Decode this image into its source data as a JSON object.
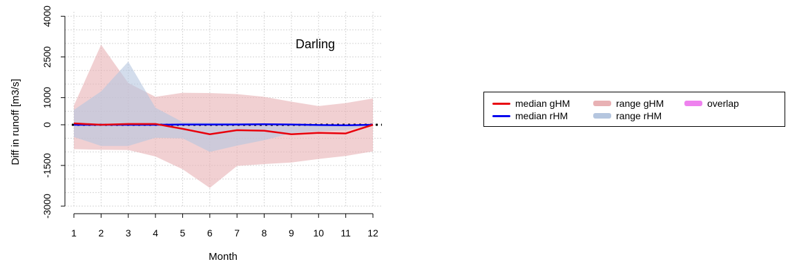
{
  "chart_data": {
    "type": "line",
    "annotation": "Darling",
    "xlabel": "Month",
    "ylabel": "Diff in runoff [m3/s]",
    "xlim": [
      1,
      12
    ],
    "ylim": [
      -3000,
      4000
    ],
    "x": [
      1,
      2,
      3,
      4,
      5,
      6,
      7,
      8,
      9,
      10,
      11,
      12
    ],
    "x_ticks": [
      "1",
      "2",
      "3",
      "4",
      "5",
      "6",
      "7",
      "8",
      "9",
      "10",
      "11",
      "12"
    ],
    "y_ticks": [
      -3000,
      -1500,
      0,
      1000,
      2500,
      4000
    ],
    "y_tick_labels": [
      "-3000",
      "-1500",
      "0",
      "1000",
      "2500",
      "4000"
    ],
    "grid": true,
    "zero_line": true,
    "legend_position": "right",
    "series": [
      {
        "name": "median gHM",
        "kind": "line",
        "color": "#e8000b",
        "values": [
          50,
          0,
          30,
          30,
          -150,
          -350,
          -200,
          -220,
          -350,
          -300,
          -320,
          0
        ]
      },
      {
        "name": "median rHM",
        "kind": "line",
        "color": "#0000ee",
        "values": [
          0,
          0,
          0,
          0,
          10,
          10,
          10,
          20,
          10,
          -10,
          -20,
          0
        ]
      },
      {
        "name": "range gHM",
        "kind": "band",
        "color": "#e8b1b4",
        "lower": [
          -900,
          -920,
          -930,
          -1170,
          -1640,
          -2330,
          -1520,
          -1450,
          -1390,
          -1260,
          -1150,
          -980
        ],
        "upper": [
          710,
          2950,
          1540,
          1030,
          1180,
          1170,
          1130,
          1030,
          850,
          690,
          800,
          970
        ]
      },
      {
        "name": "range rHM",
        "kind": "band",
        "color": "#b5c6df",
        "lower": [
          -450,
          -780,
          -780,
          -480,
          -500,
          -1000,
          -770,
          -570,
          -310,
          -240,
          -200,
          -20
        ],
        "upper": [
          550,
          1230,
          2330,
          630,
          100,
          80,
          70,
          60,
          40,
          20,
          10,
          20
        ]
      },
      {
        "name": "overlap",
        "kind": "legend-only",
        "color": "#ee82ee"
      }
    ]
  }
}
